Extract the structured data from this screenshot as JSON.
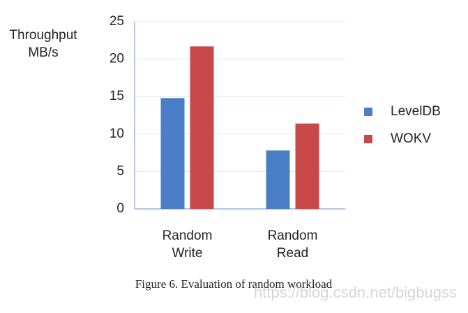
{
  "chart_data": {
    "type": "bar",
    "y_label": "Throughput\nMB/s",
    "categories": [
      "Random\nWrite",
      "Random\nRead"
    ],
    "series": [
      {
        "name": "LevelDB",
        "color": "#4a7fc8",
        "values": [
          14.8,
          7.8
        ]
      },
      {
        "name": "WOKV",
        "color": "#c9484a",
        "values": [
          21.7,
          11.4
        ]
      }
    ],
    "ylim": [
      0,
      25
    ],
    "yticks": [
      0,
      5,
      10,
      15,
      20,
      25
    ],
    "grid": true,
    "legend": "right",
    "caption": "Figure 6. Evaluation of random workload",
    "watermark": "https://blog.csdn.net/bigbugss"
  }
}
